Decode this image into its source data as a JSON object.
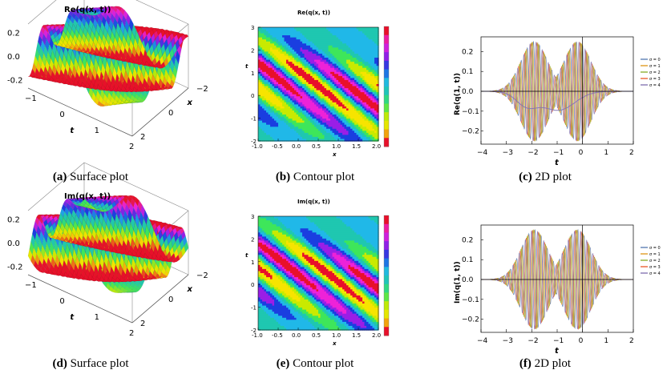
{
  "chart_data": [
    {
      "type": "surface",
      "panel": "a",
      "title": "Re(q(x, t))",
      "caption_tag": "(a)",
      "caption_text": "Surface plot",
      "xlabel": "x",
      "ylabel": "t",
      "xticks": [
        -2,
        0,
        2
      ],
      "tticks": [
        -1,
        0,
        1,
        2
      ],
      "zticks": [
        0.2,
        0.0,
        -0.2
      ],
      "zlim": [
        -0.27,
        0.27
      ]
    },
    {
      "type": "heatmap",
      "panel": "b",
      "title": "Re(q(x, t))",
      "caption_tag": "(b)",
      "caption_text": "Contour plot",
      "xlabel": "x",
      "ylabel": "t",
      "xlim": [
        -1.0,
        2.0
      ],
      "ylim": [
        -2,
        3
      ],
      "xticks": [
        "-1.0",
        "-0.5",
        "0.0",
        "0.5",
        "1.0",
        "1.5",
        "2.0"
      ],
      "yticks": [
        "-2",
        "-1",
        "0",
        "1",
        "2",
        "3"
      ],
      "legend_colors": [
        "#e8102a",
        "#f7e400",
        "#c9ea00",
        "#3ee65a",
        "#1fc7b0",
        "#20b8e8",
        "#1a3ee0",
        "#9a1ee6",
        "#ee22d8",
        "#e8102a"
      ]
    },
    {
      "type": "line",
      "panel": "c",
      "ylabel": "Re(q(1, t))",
      "xlabel": "t",
      "caption_tag": "(c)",
      "caption_text": "2D plot",
      "xlim": [
        -4,
        2
      ],
      "ylim": [
        -0.25,
        0.25
      ],
      "xticks": [
        "-4",
        "-3",
        "-2",
        "-1",
        "0",
        "1",
        "2"
      ],
      "yticks": [
        "0.2",
        "0.1",
        "0.0",
        "-0.1",
        "-0.2"
      ],
      "envelope_peaks_t": [
        -1.9,
        -0.2
      ],
      "envelope_peak_value": 0.25,
      "series": [
        {
          "name": "σ = 0",
          "color": "#5e81b5"
        },
        {
          "name": "σ = 1",
          "color": "#e19c24"
        },
        {
          "name": "σ = 2",
          "color": "#8fb032"
        },
        {
          "name": "σ = 3",
          "color": "#eb6235"
        },
        {
          "name": "σ = 4",
          "color": "#8778b3"
        }
      ]
    },
    {
      "type": "surface",
      "panel": "d",
      "title": "Im(q(x, t))",
      "caption_tag": "(d)",
      "caption_text": "Surface plot",
      "xlabel": "x",
      "ylabel": "t",
      "xticks": [
        -2,
        0,
        2
      ],
      "tticks": [
        -1,
        0,
        1,
        2
      ],
      "zticks": [
        0.2,
        0.0,
        -0.2
      ],
      "zlim": [
        -0.27,
        0.27
      ]
    },
    {
      "type": "heatmap",
      "panel": "e",
      "title": "Im(q(x, t))",
      "caption_tag": "(e)",
      "caption_text": "Contour plot",
      "xlabel": "x",
      "ylabel": "t",
      "xlim": [
        -1.0,
        2.0
      ],
      "ylim": [
        -2,
        3
      ],
      "xticks": [
        "-1.0",
        "-0.5",
        "0.0",
        "0.5",
        "1.0",
        "1.5",
        "2.0"
      ],
      "yticks": [
        "-2",
        "-1",
        "0",
        "1",
        "2",
        "3"
      ],
      "legend_colors": [
        "#e8102a",
        "#f7e400",
        "#c9ea00",
        "#3ee65a",
        "#1fc7b0",
        "#20b8e8",
        "#1a3ee0",
        "#9a1ee6",
        "#ee22d8",
        "#e8102a"
      ]
    },
    {
      "type": "line",
      "panel": "f",
      "ylabel": "Im(q(1, t))",
      "xlabel": "t",
      "caption_tag": "(f)",
      "caption_text": "2D plot",
      "xlim": [
        -4,
        2
      ],
      "ylim": [
        -0.25,
        0.25
      ],
      "xticks": [
        "-4",
        "-3",
        "-2",
        "-1",
        "0",
        "1",
        "2"
      ],
      "yticks": [
        "0.2",
        "0.1",
        "0.0",
        "-0.1",
        "-0.2"
      ],
      "envelope_peaks_t": [
        -1.9,
        -0.2
      ],
      "envelope_peak_value": 0.25,
      "series": [
        {
          "name": "σ = 0",
          "color": "#5e81b5"
        },
        {
          "name": "σ = 1",
          "color": "#e19c24"
        },
        {
          "name": "σ = 2",
          "color": "#8fb032"
        },
        {
          "name": "σ = 3",
          "color": "#eb6235"
        },
        {
          "name": "σ = 4",
          "color": "#8778b3"
        }
      ]
    }
  ]
}
